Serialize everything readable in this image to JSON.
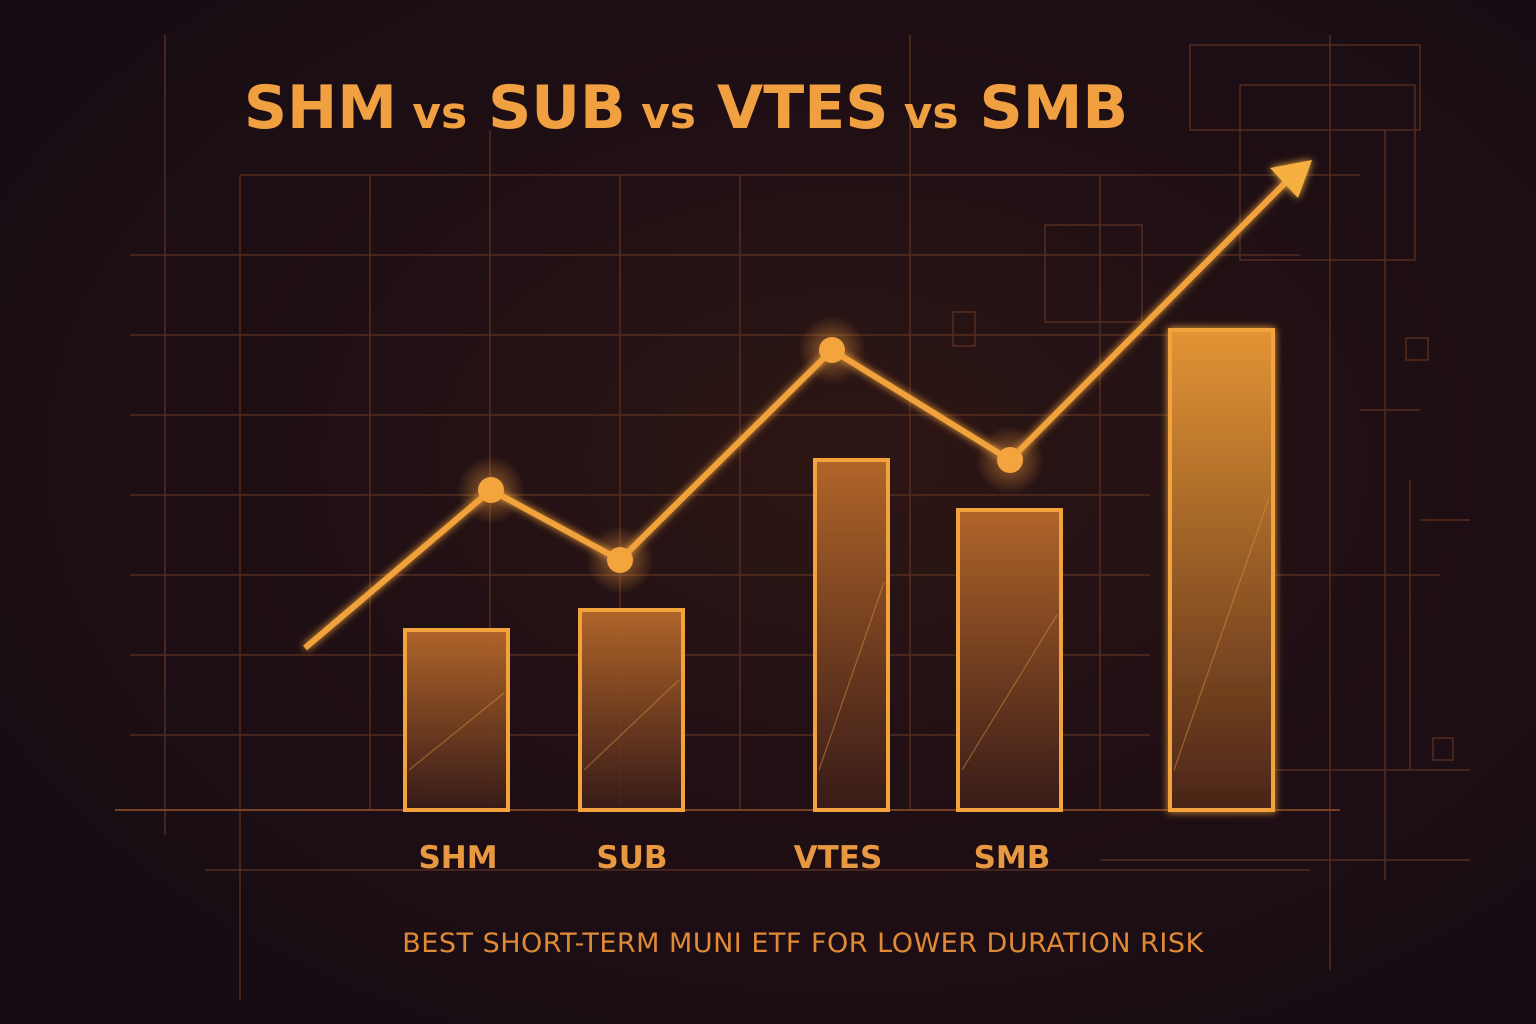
{
  "chart_data": {
    "type": "bar",
    "title_parts": [
      "SHM",
      "vs",
      "SUB",
      "vs",
      "VTES",
      "vs",
      "SMB"
    ],
    "subtitle": "BEST SHORT-TERM MUNI ETF FOR LOWER DURATION RISK",
    "categories": [
      "SHM",
      "SUB",
      "VTES",
      "SMB",
      ""
    ],
    "values": [
      18,
      20,
      35,
      30,
      48
    ],
    "line_values": [
      32,
      25,
      46,
      35
    ],
    "ylim": [
      0,
      72
    ],
    "grid": true,
    "legend": "none",
    "xlabel": "",
    "ylabel": "",
    "colors": {
      "accent": "#f0a040",
      "bar_stroke": "#f2a33c",
      "bar_fill_top": "#b86a2a",
      "bar_fill_bottom": "#3a1c18",
      "grid": "#6b3a22",
      "background": "#1a0e14"
    }
  }
}
